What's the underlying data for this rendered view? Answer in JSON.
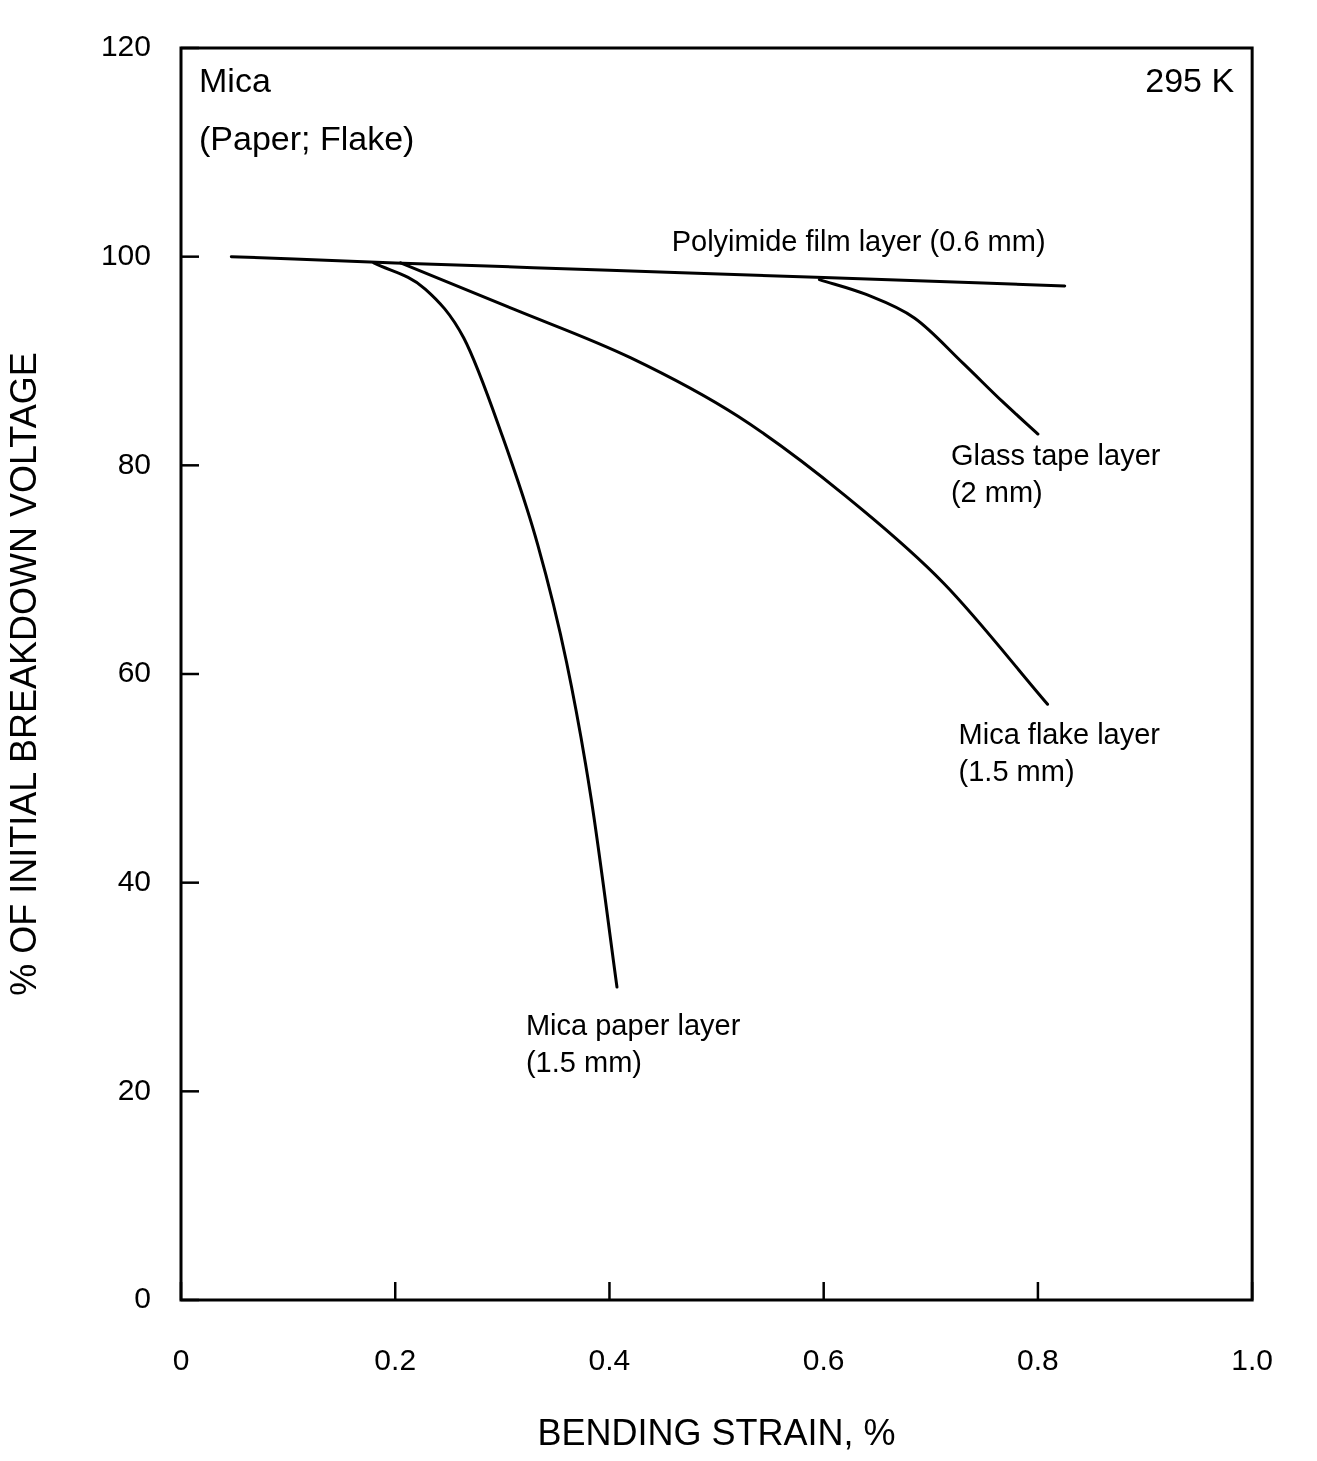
{
  "chart_data": {
    "type": "line",
    "xlabel": "BENDING STRAIN, %",
    "ylabel": "% OF INITIAL BREAKDOWN VOLTAGE",
    "annotations": [
      "Mica\n(Paper; Flake)",
      "295 K"
    ],
    "xlim": [
      0,
      1
    ],
    "xticks": [
      0,
      0.2,
      0.4,
      0.6,
      0.8,
      {
        "value": 1,
        "label": "1.0"
      }
    ],
    "ylim": [
      0,
      120
    ],
    "yticks": [
      0,
      20,
      40,
      60,
      80,
      100,
      120
    ],
    "grid": false,
    "legend": false,
    "marker": "none",
    "line_style": "solid",
    "series": [
      {
        "name": "Polyimide film layer (0.6 mm)",
        "color": "#000000",
        "x": [
          0.047,
          0.2,
          0.4,
          0.6,
          0.825
        ],
        "values": [
          100,
          99.4,
          98.7,
          98,
          97.2
        ]
      },
      {
        "name": "Mica paper layer\n(1.5 mm)",
        "color": "#000000",
        "x": [
          0.18,
          0.228,
          0.264,
          0.3,
          0.333,
          0.36,
          0.383,
          0.407
        ],
        "values": [
          99.4,
          96.9,
          92.2,
          82.8,
          72.4,
          61.1,
          48,
          30
        ]
      },
      {
        "name": "Mica flake layer\n(1.5 mm)",
        "color": "#000000",
        "x": [
          0.205,
          0.31,
          0.42,
          0.52,
          0.62,
          0.712,
          0.809
        ],
        "values": [
          99.4,
          95,
          90.3,
          84.7,
          77.1,
          68.7,
          57.1
        ]
      },
      {
        "name": "Glass tape layer\n(2 mm)",
        "color": "#000000",
        "x": [
          0.596,
          0.639,
          0.685,
          0.73,
          0.767,
          0.8
        ],
        "values": [
          97.8,
          96.4,
          94.1,
          89.8,
          86.1,
          83
        ]
      }
    ]
  }
}
